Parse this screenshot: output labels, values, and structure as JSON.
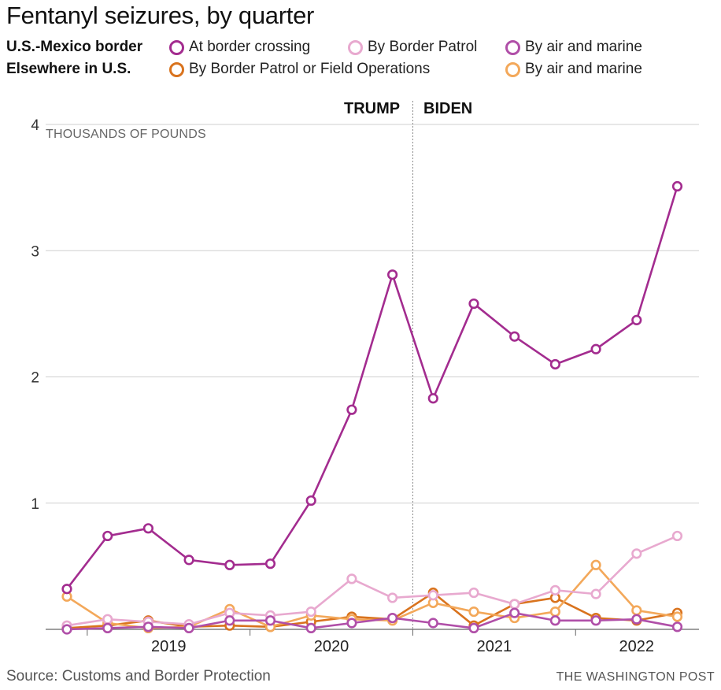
{
  "title": "Fentanyl seizures, by quarter",
  "legend": {
    "group1": "U.S.-Mexico border",
    "group2": "Elsewhere in U.S.",
    "items": [
      {
        "label": "At border crossing",
        "color": "#a32c8f"
      },
      {
        "label": "By Border Patrol",
        "color": "#e8a9cf"
      },
      {
        "label": "By air and marine",
        "color": "#b04fa8"
      },
      {
        "label": "By Border Patrol or Field Operations",
        "color": "#d9731e"
      },
      {
        "label": "By air and marine",
        "color": "#f3a85a"
      }
    ]
  },
  "annotations": {
    "left": "TRUMP",
    "right": "BIDEN"
  },
  "unit_label": "THOUSANDS OF POUNDS",
  "source": "Source: Customs and Border Protection",
  "credit": "THE WASHINGTON POST",
  "chart_data": {
    "type": "line",
    "ylim": [
      0,
      4
    ],
    "yticks": [
      "1",
      "2",
      "3",
      "4"
    ],
    "ytick_values": [
      1,
      2,
      3,
      4
    ],
    "xtick_labels": [
      "2019",
      "2020",
      "2021",
      "2022"
    ],
    "x": [
      "2018 Q4",
      "2019 Q1",
      "2019 Q2",
      "2019 Q3",
      "2019 Q4",
      "2020 Q1",
      "2020 Q2",
      "2020 Q3",
      "2020 Q4",
      "2021 Q1",
      "2021 Q2",
      "2021 Q3",
      "2021 Q4",
      "2022 Q1",
      "2022 Q2",
      "2022 Q3"
    ],
    "divider_after": "2020 Q4",
    "grid": true,
    "series": [
      {
        "name": "By Border Patrol or Field Operations",
        "color": "#d9731e",
        "values": [
          0.01,
          0.03,
          0.07,
          0.02,
          0.03,
          0.02,
          0.06,
          0.1,
          0.08,
          0.29,
          0.03,
          0.2,
          0.25,
          0.09,
          0.07,
          0.13
        ]
      },
      {
        "name": "By air and marine",
        "color": "#f3a85a",
        "values": [
          0.26,
          0.05,
          0.01,
          0.02,
          0.16,
          0.02,
          0.11,
          0.08,
          0.07,
          0.21,
          0.14,
          0.09,
          0.14,
          0.51,
          0.15,
          0.1
        ]
      },
      {
        "name": "By Border Patrol",
        "color": "#e8a9cf",
        "values": [
          0.03,
          0.08,
          0.06,
          0.04,
          0.13,
          0.11,
          0.14,
          0.4,
          0.25,
          0.27,
          0.29,
          0.2,
          0.31,
          0.28,
          0.6,
          0.74
        ]
      },
      {
        "name": "By air and marine",
        "color": "#b04fa8",
        "values": [
          0.0,
          0.01,
          0.02,
          0.01,
          0.07,
          0.07,
          0.01,
          0.05,
          0.09,
          0.05,
          0.01,
          0.13,
          0.07,
          0.07,
          0.08,
          0.02
        ]
      },
      {
        "name": "At border crossing",
        "color": "#a32c8f",
        "values": [
          0.32,
          0.74,
          0.8,
          0.55,
          0.51,
          0.52,
          1.02,
          1.74,
          2.81,
          1.83,
          2.58,
          2.32,
          2.1,
          2.22,
          2.45,
          3.51
        ]
      }
    ]
  }
}
